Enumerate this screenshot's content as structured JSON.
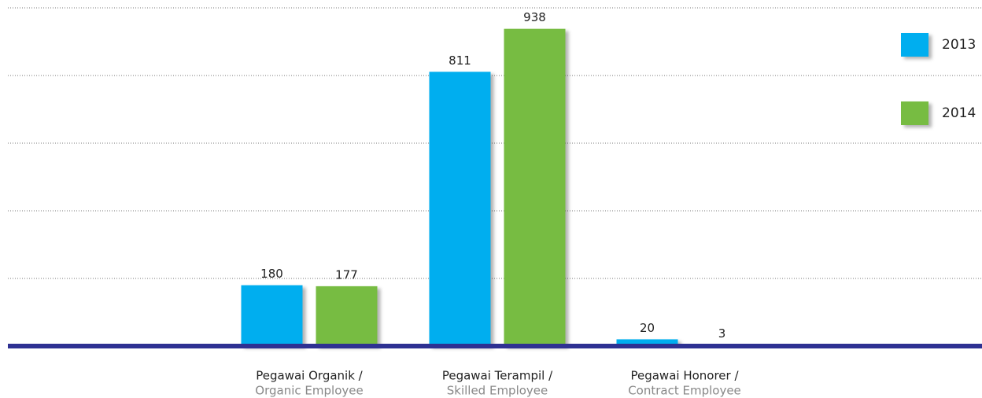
{
  "chart_data": {
    "type": "bar",
    "categories": [
      [
        "Pegawai Organik /",
        "Organic Employee"
      ],
      [
        "Pegawai Terampil /",
        "Skilled Employee"
      ],
      [
        "Pegawai Honorer /",
        "Contract Employee"
      ]
    ],
    "series": [
      {
        "name": "2013",
        "color": "#00aeef",
        "values": [
          180,
          811,
          20
        ]
      },
      {
        "name": "2014",
        "color": "#77bc43",
        "values": [
          177,
          938,
          3
        ]
      }
    ],
    "ylim": [
      0,
      1000
    ],
    "yticks": [
      200,
      400,
      600,
      800,
      1000
    ],
    "grid": true
  }
}
